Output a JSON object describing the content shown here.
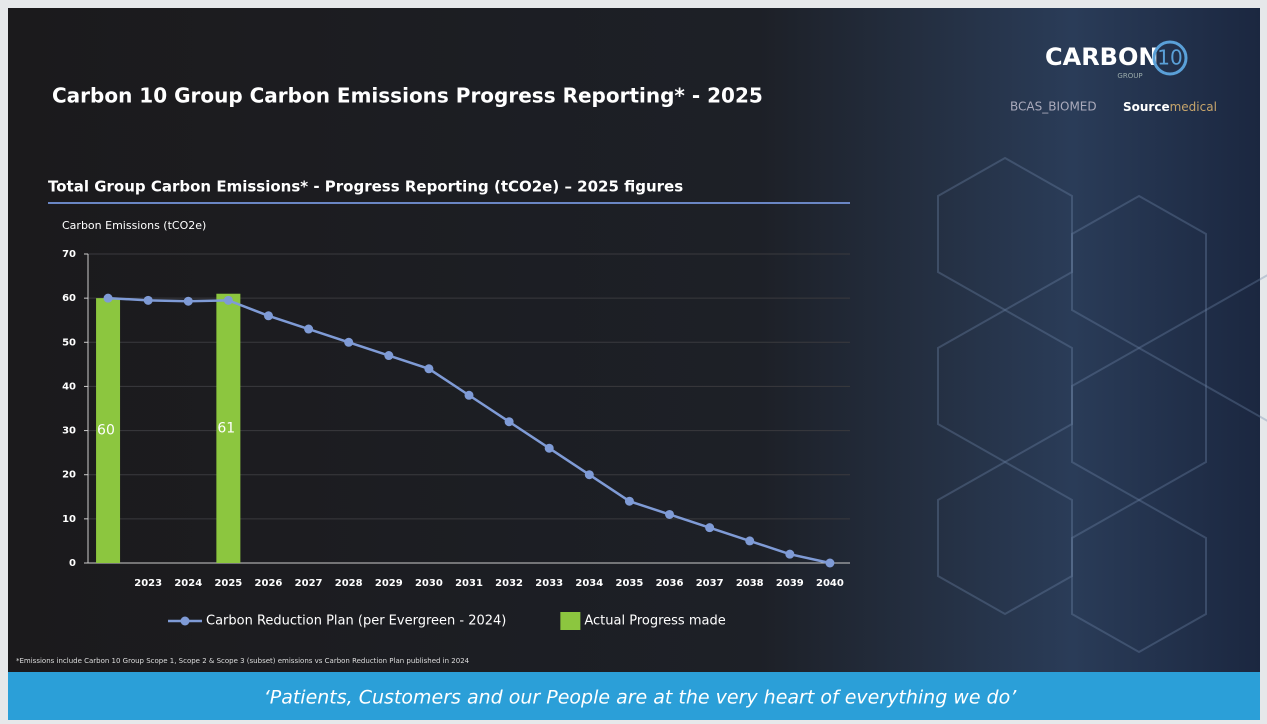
{
  "header": {
    "title": "Carbon 10 Group Carbon Emissions Progress Reporting* - 2025",
    "logo": {
      "word": "CARBON",
      "number": "10",
      "group": "GROUP"
    },
    "partners": {
      "first": "BCAS_BIOMED",
      "second_bold": "Source",
      "second_light": "medical"
    }
  },
  "chart_data": {
    "type": "combo",
    "title": "Total Group Carbon Emissions* - Progress Reporting (tCO2e) – 2025 figures",
    "y_label": "Carbon Emissions (tCO2e)",
    "categories": [
      null,
      "2023",
      "2024",
      "2025",
      "2026",
      "2027",
      "2028",
      "2029",
      "2030",
      "2031",
      "2032",
      "2033",
      "2034",
      "2035",
      "2036",
      "2037",
      "2038",
      "2039",
      "2040"
    ],
    "series": [
      {
        "name": "Carbon Reduction Plan (per Evergreen - 2024)",
        "type": "line",
        "color": "#7f9bd6",
        "values": [
          60,
          59.5,
          59.3,
          59.5,
          56,
          53,
          50,
          47,
          44,
          38,
          32,
          26,
          20,
          14,
          11,
          8,
          5,
          2,
          0
        ]
      },
      {
        "name": "Actual Progress made",
        "type": "bar",
        "color": "#8cc63f",
        "values": [
          60,
          null,
          null,
          61,
          null,
          null,
          null,
          null,
          null,
          null,
          null,
          null,
          null,
          null,
          null,
          null,
          null,
          null,
          null
        ]
      }
    ],
    "ylim": [
      0,
      70
    ],
    "yticks": [
      0,
      10,
      20,
      30,
      40,
      50,
      60,
      70
    ],
    "grid": true,
    "legend": "bottom"
  },
  "footnote": "*Emissions include Carbon 10 Group Scope 1, Scope 2 & Scope 3 (subset) emissions vs Carbon Reduction Plan published in 2024",
  "banner": "‘Patients, Customers and our People are at the very heart of everything we do’"
}
